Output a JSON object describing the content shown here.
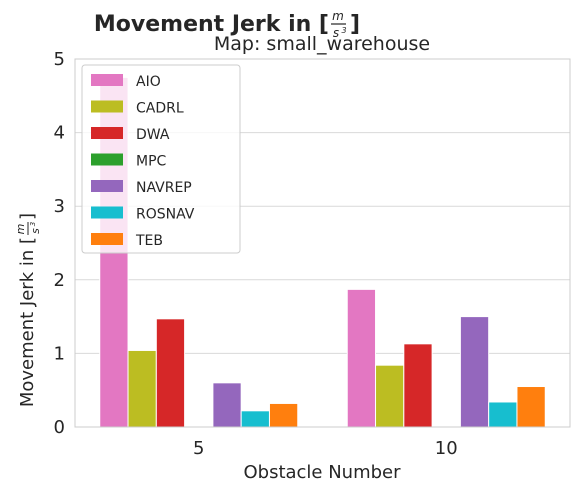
{
  "chart_data": {
    "type": "bar",
    "title": "Movement Jerk in [m/s³]",
    "title_prefix": "Movement Jerk in [",
    "title_suffix": "]",
    "unit_numerator": "m",
    "unit_denominator": "s",
    "unit_power": "3",
    "subtitle": "Map: small_warehouse",
    "xlabel": "Obstacle Number",
    "ylabel": "Movement Jerk in [m/s³]",
    "ylabel_prefix": "Movement Jerk in [",
    "ylabel_suffix": "]",
    "ylim": [
      0,
      5
    ],
    "yticks": [
      "0",
      "1",
      "2",
      "3",
      "4",
      "5"
    ],
    "categories": [
      "5",
      "10"
    ],
    "grid": true,
    "legend_position": "top-left",
    "series": [
      {
        "name": "AIO",
        "color": "#e377c2",
        "values": [
          4.75,
          1.87
        ]
      },
      {
        "name": "CADRL",
        "color": "#bcbd22",
        "values": [
          1.04,
          0.84
        ]
      },
      {
        "name": "DWA",
        "color": "#d62728",
        "values": [
          1.47,
          1.13
        ]
      },
      {
        "name": "MPC",
        "color": "#2ca02c",
        "values": [
          0,
          0
        ]
      },
      {
        "name": "NAVREP",
        "color": "#9467bd",
        "values": [
          0.6,
          1.5
        ]
      },
      {
        "name": "ROSNAV",
        "color": "#17becf",
        "values": [
          0.22,
          0.34
        ]
      },
      {
        "name": "TEB",
        "color": "#ff7f0e",
        "values": [
          0.32,
          0.55
        ]
      }
    ]
  }
}
